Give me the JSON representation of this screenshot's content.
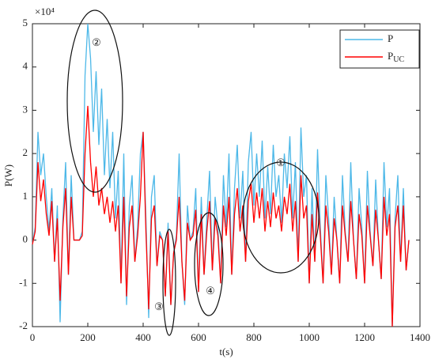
{
  "chart_data": {
    "type": "line",
    "x_label": "t(s)",
    "y_label": "P(W)",
    "y_exponent_label": "×10⁴",
    "annotations": [
      "①",
      "②",
      "③",
      "④"
    ],
    "x": [
      0,
      10,
      20,
      30,
      40,
      50,
      60,
      70,
      80,
      90,
      100,
      110,
      120,
      130,
      140,
      150,
      160,
      170,
      180,
      190,
      200,
      210,
      220,
      230,
      240,
      250,
      260,
      270,
      280,
      290,
      300,
      310,
      320,
      330,
      340,
      350,
      360,
      370,
      380,
      390,
      400,
      410,
      420,
      430,
      440,
      450,
      460,
      470,
      480,
      490,
      500,
      510,
      520,
      530,
      540,
      550,
      560,
      570,
      580,
      590,
      600,
      610,
      620,
      630,
      640,
      650,
      660,
      670,
      680,
      690,
      700,
      710,
      720,
      730,
      740,
      750,
      760,
      770,
      780,
      790,
      800,
      810,
      820,
      830,
      840,
      850,
      860,
      870,
      880,
      890,
      900,
      910,
      920,
      930,
      940,
      950,
      960,
      970,
      980,
      990,
      1000,
      1010,
      1020,
      1030,
      1040,
      1050,
      1060,
      1070,
      1080,
      1090,
      1100,
      1110,
      1120,
      1130,
      1140,
      1150,
      1160,
      1170,
      1180,
      1190,
      1200,
      1210,
      1220,
      1230,
      1240,
      1250,
      1260,
      1270,
      1280,
      1290,
      1300,
      1310,
      1320,
      1330,
      1340,
      1350,
      1360
    ],
    "series": [
      {
        "name": "P",
        "color": "#4db8e8",
        "values": [
          -0.1,
          0.3,
          2.5,
          1.5,
          2.0,
          1.0,
          0.2,
          1.2,
          -0.5,
          0.8,
          -1.9,
          0.5,
          1.8,
          -0.8,
          1.5,
          0.0,
          0.0,
          0.0,
          0.2,
          3.8,
          5.0,
          4.2,
          2.5,
          3.9,
          2.2,
          3.5,
          1.5,
          2.8,
          1.2,
          2.5,
          0.5,
          1.6,
          -1.0,
          2.0,
          -1.5,
          0.8,
          1.5,
          -0.5,
          0.3,
          2.0,
          2.5,
          0.5,
          -1.8,
          1.0,
          1.5,
          -0.6,
          0.2,
          0.0,
          -1.3,
          0.4,
          -1.5,
          -0.3,
          0.1,
          2.0,
          -0.5,
          -1.5,
          0.8,
          0.0,
          0.2,
          1.2,
          -1.2,
          1.0,
          -0.8,
          0.5,
          1.6,
          -0.7,
          1.0,
          0.3,
          -1.0,
          1.5,
          0.3,
          2.0,
          -0.8,
          1.2,
          2.2,
          0.5,
          1.6,
          -0.5,
          1.8,
          2.5,
          0.8,
          2.0,
          1.0,
          2.3,
          0.5,
          1.7,
          0.6,
          2.2,
          1.0,
          1.5,
          0.4,
          2.0,
          1.2,
          2.4,
          0.5,
          1.8,
          -0.5,
          2.6,
          1.0,
          1.5,
          -1.0,
          1.2,
          -0.5,
          2.1,
          0.3,
          -1.0,
          1.5,
          0.5,
          -0.8,
          1.0,
          0.0,
          -1.0,
          1.5,
          0.2,
          -0.5,
          1.8,
          0.0,
          -0.9,
          1.2,
          0.3,
          -1.0,
          1.6,
          0.2,
          -0.6,
          1.4,
          0.0,
          -0.9,
          1.8,
          0.3,
          1.2,
          -2.0,
          0.5,
          1.5,
          -0.5,
          1.2,
          -0.7,
          0.0
        ]
      },
      {
        "name": "PUC",
        "color": "#ff0000",
        "values": [
          -0.1,
          0.2,
          1.8,
          0.9,
          1.4,
          0.6,
          0.1,
          0.9,
          -0.5,
          0.5,
          -1.4,
          0.3,
          1.2,
          -0.8,
          1.0,
          0.0,
          0.0,
          0.0,
          0.1,
          2.0,
          3.1,
          1.8,
          1.0,
          1.7,
          0.8,
          1.2,
          0.6,
          1.0,
          0.4,
          0.9,
          0.2,
          0.8,
          -1.0,
          1.0,
          -1.3,
          0.3,
          0.8,
          -0.5,
          0.1,
          1.0,
          2.5,
          0.2,
          -1.6,
          0.5,
          0.8,
          -0.6,
          0.1,
          0.0,
          -1.3,
          0.2,
          -1.5,
          -0.3,
          0.0,
          1.0,
          -0.5,
          -1.4,
          0.4,
          0.0,
          0.1,
          0.7,
          -1.2,
          0.6,
          -0.8,
          0.2,
          0.9,
          -0.7,
          0.5,
          0.1,
          -1.0,
          0.8,
          0.1,
          1.0,
          -0.8,
          0.6,
          1.2,
          0.2,
          0.8,
          -0.5,
          0.9,
          1.3,
          0.4,
          1.1,
          0.5,
          1.2,
          0.2,
          0.9,
          0.3,
          1.1,
          0.5,
          0.8,
          0.2,
          1.0,
          0.6,
          1.3,
          0.2,
          0.9,
          -0.5,
          1.5,
          0.5,
          0.8,
          -1.0,
          0.6,
          -0.5,
          1.1,
          0.1,
          -1.0,
          0.8,
          0.2,
          -0.8,
          0.5,
          0.0,
          -1.0,
          0.8,
          0.1,
          -0.5,
          0.9,
          0.0,
          -0.9,
          0.6,
          0.1,
          -1.0,
          0.8,
          0.1,
          -0.6,
          0.7,
          0.0,
          -0.9,
          1.0,
          0.1,
          0.6,
          -2.0,
          0.3,
          0.8,
          -0.5,
          0.8,
          -0.7,
          0.0
        ]
      }
    ],
    "xlim": [
      0,
      1400
    ],
    "xticks": [
      0,
      200,
      400,
      600,
      800,
      1000,
      1200,
      1400
    ],
    "ylim": [
      -2,
      5
    ],
    "yticks": [
      -2,
      -1,
      0,
      1,
      2,
      3,
      4,
      5
    ],
    "grid": false,
    "legend": "upper right"
  }
}
